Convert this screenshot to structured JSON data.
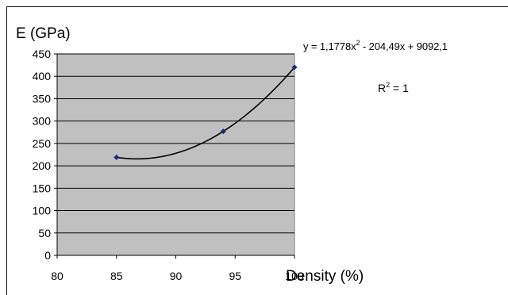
{
  "chart_data": {
    "type": "scatter",
    "title": "",
    "ylabel": "E (GPa)",
    "xlabel": "Density (%)",
    "xlim": [
      80,
      100
    ],
    "ylim": [
      0,
      450
    ],
    "xticks": [
      "80",
      "85",
      "90",
      "95",
      "100"
    ],
    "yticks": [
      "0",
      "50",
      "100",
      "150",
      "200",
      "250",
      "300",
      "350",
      "400",
      "450"
    ],
    "grid": true,
    "series": [
      {
        "x": [
          85,
          94,
          100
        ],
        "y": [
          219,
          277,
          420
        ],
        "color": "#1f2a7a"
      }
    ],
    "trendline": {
      "type": "polynomial",
      "coefficients": [
        1.1778,
        -204.49,
        9092.1
      ],
      "color": "#000000"
    },
    "equation_prefix": "y = 1,1778x",
    "equation_sup": "2",
    "equation_suffix": " - 204,49x + 9092,1",
    "r2_prefix": "R",
    "r2_sup": "2",
    "r2_suffix": " = 1",
    "plot_bg": "#c0c0c0"
  }
}
